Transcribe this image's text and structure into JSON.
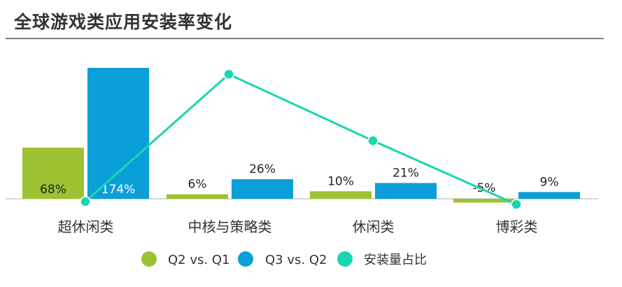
{
  "title": "全球游戏类应用安装率变化",
  "chart_data": {
    "type": "bar",
    "categories": [
      "超休闲类",
      "中核与策略类",
      "休闲类",
      "博彩类"
    ],
    "series": [
      {
        "name": "Q2 vs. Q1",
        "type": "bar",
        "values": [
          68,
          6,
          10,
          -5
        ],
        "labels": [
          "68%",
          "6%",
          "10%",
          "-5%"
        ],
        "color": "#9dc232"
      },
      {
        "name": "Q3 vs. Q2",
        "type": "bar",
        "values": [
          174,
          26,
          21,
          9
        ],
        "labels": [
          "174%",
          "26%",
          "21%",
          "9%"
        ],
        "color": "#0a9fd8"
      },
      {
        "name": "安装量占比",
        "type": "line",
        "values": [
          null,
          null,
          null,
          null
        ],
        "color": "#19d6b0"
      }
    ],
    "ylim": [
      -10,
      180
    ],
    "grid": false,
    "legend": "bottom"
  }
}
